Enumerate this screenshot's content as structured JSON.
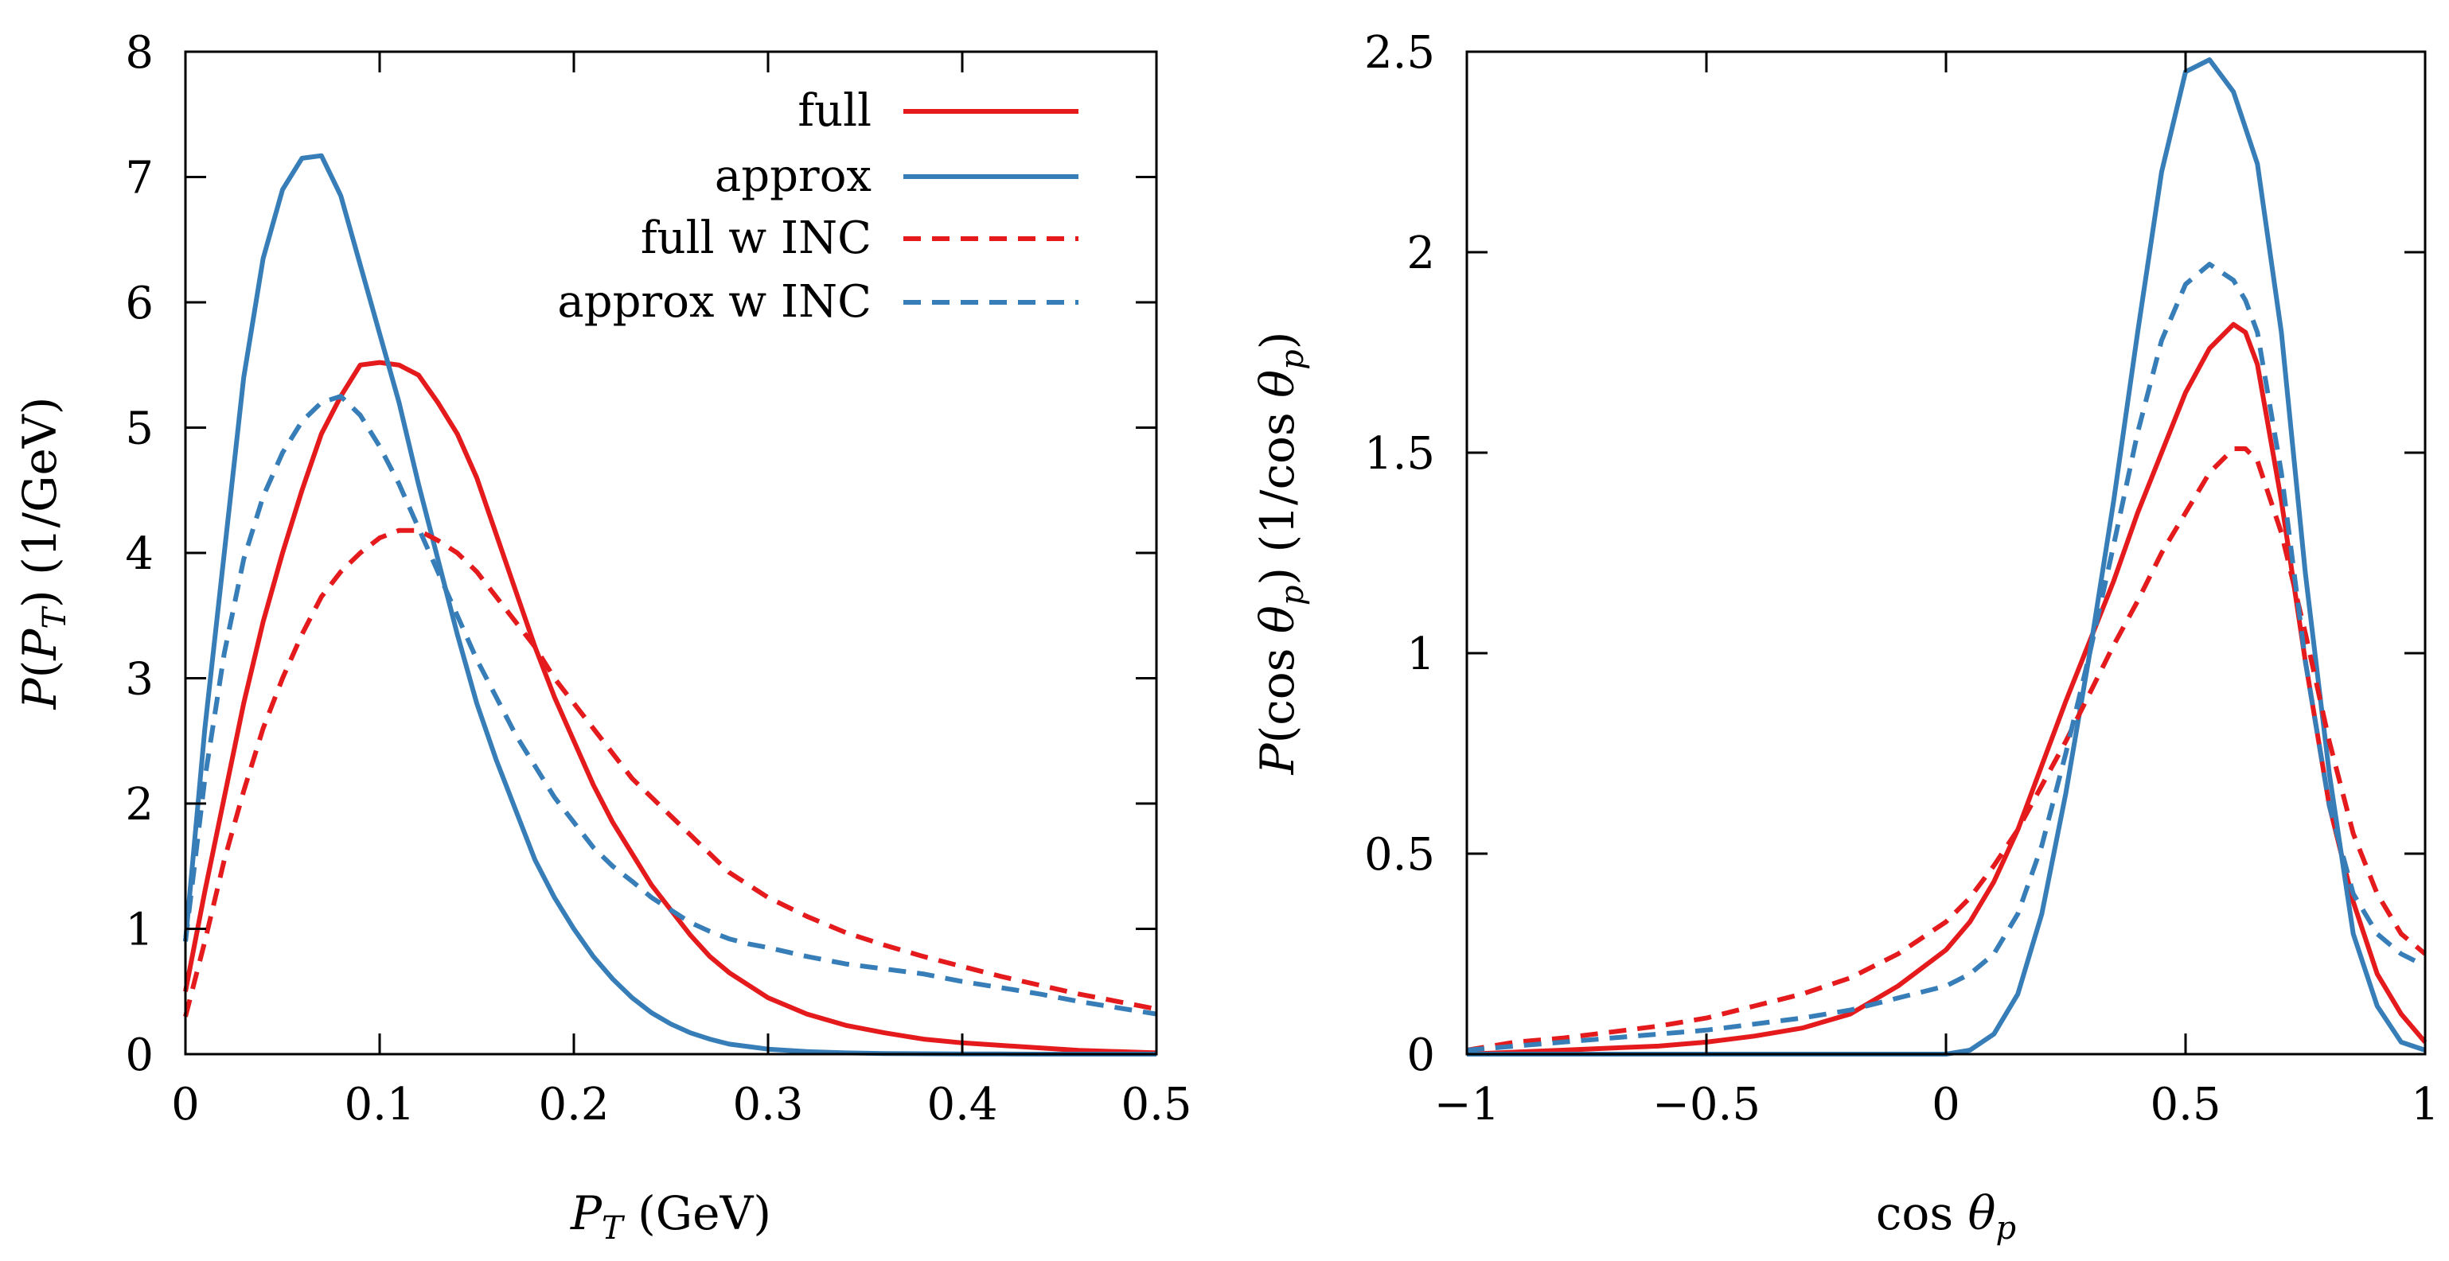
{
  "chart_data": [
    {
      "type": "line",
      "xlabel": "P_T (GeV)",
      "ylabel": "P(P_T) (1/GeV)",
      "xlim": [
        0,
        0.5
      ],
      "ylim": [
        0,
        8
      ],
      "xticks": [
        0,
        0.1,
        0.2,
        0.3,
        0.4,
        0.5
      ],
      "yticks": [
        0,
        1,
        2,
        3,
        4,
        5,
        6,
        7,
        8
      ],
      "xtick_labels": [
        "0",
        "0.1",
        "0.2",
        "0.3",
        "0.4",
        "0.5"
      ],
      "ytick_labels": [
        "0",
        "1",
        "2",
        "3",
        "4",
        "5",
        "6",
        "7",
        "8"
      ],
      "xlabel_parts": [
        "P",
        "T",
        " (GeV)"
      ],
      "ylabel_parts": [
        "P",
        "(",
        "P",
        "T",
        ") (1/GeV)"
      ],
      "legend_position": "top-right",
      "grid": false,
      "series": [
        {
          "name": "full",
          "color": "#e41a1c",
          "dash": "solid",
          "x": [
            0,
            0.01,
            0.02,
            0.03,
            0.04,
            0.05,
            0.06,
            0.07,
            0.08,
            0.09,
            0.1,
            0.11,
            0.12,
            0.13,
            0.14,
            0.15,
            0.16,
            0.17,
            0.18,
            0.19,
            0.2,
            0.21,
            0.22,
            0.23,
            0.24,
            0.25,
            0.26,
            0.27,
            0.28,
            0.29,
            0.3,
            0.32,
            0.34,
            0.36,
            0.38,
            0.4,
            0.42,
            0.44,
            0.46,
            0.48,
            0.5
          ],
          "y": [
            0.5,
            1.3,
            2.05,
            2.8,
            3.45,
            4.0,
            4.5,
            4.95,
            5.25,
            5.5,
            5.52,
            5.5,
            5.42,
            5.2,
            4.95,
            4.6,
            4.15,
            3.7,
            3.25,
            2.85,
            2.5,
            2.15,
            1.85,
            1.6,
            1.35,
            1.15,
            0.95,
            0.78,
            0.65,
            0.55,
            0.45,
            0.32,
            0.23,
            0.17,
            0.12,
            0.09,
            0.07,
            0.05,
            0.03,
            0.02,
            0.01
          ]
        },
        {
          "name": "approx",
          "color": "#377eb8",
          "dash": "solid",
          "x": [
            0,
            0.01,
            0.02,
            0.03,
            0.04,
            0.05,
            0.06,
            0.07,
            0.08,
            0.09,
            0.1,
            0.11,
            0.12,
            0.13,
            0.14,
            0.15,
            0.16,
            0.17,
            0.18,
            0.19,
            0.2,
            0.21,
            0.22,
            0.23,
            0.24,
            0.25,
            0.26,
            0.27,
            0.28,
            0.29,
            0.3,
            0.32,
            0.34,
            0.36,
            0.38,
            0.4,
            0.42,
            0.44,
            0.46,
            0.48,
            0.5
          ],
          "y": [
            0.9,
            2.6,
            4.0,
            5.4,
            6.35,
            6.9,
            7.15,
            7.17,
            6.85,
            6.3,
            5.75,
            5.2,
            4.55,
            3.95,
            3.35,
            2.8,
            2.35,
            1.95,
            1.55,
            1.25,
            1.0,
            0.78,
            0.6,
            0.45,
            0.33,
            0.24,
            0.17,
            0.12,
            0.08,
            0.06,
            0.04,
            0.02,
            0.01,
            0.005,
            0.003,
            0.002,
            0.001,
            0,
            0,
            0,
            0
          ]
        },
        {
          "name": "full w INC",
          "color": "#e41a1c",
          "dash": "dashed",
          "x": [
            0,
            0.01,
            0.02,
            0.03,
            0.04,
            0.05,
            0.06,
            0.07,
            0.08,
            0.09,
            0.1,
            0.11,
            0.12,
            0.13,
            0.14,
            0.15,
            0.16,
            0.17,
            0.18,
            0.19,
            0.2,
            0.21,
            0.22,
            0.23,
            0.24,
            0.25,
            0.26,
            0.27,
            0.28,
            0.29,
            0.3,
            0.32,
            0.34,
            0.36,
            0.38,
            0.4,
            0.42,
            0.44,
            0.46,
            0.48,
            0.5
          ],
          "y": [
            0.3,
            0.9,
            1.55,
            2.1,
            2.6,
            3.0,
            3.35,
            3.65,
            3.85,
            4.0,
            4.12,
            4.18,
            4.18,
            4.1,
            4.0,
            3.85,
            3.65,
            3.45,
            3.25,
            3.0,
            2.8,
            2.6,
            2.4,
            2.2,
            2.05,
            1.9,
            1.75,
            1.6,
            1.45,
            1.35,
            1.25,
            1.1,
            0.97,
            0.87,
            0.78,
            0.7,
            0.62,
            0.55,
            0.48,
            0.42,
            0.36
          ]
        },
        {
          "name": "approx w INC",
          "color": "#377eb8",
          "dash": "dashed",
          "x": [
            0,
            0.01,
            0.02,
            0.03,
            0.04,
            0.05,
            0.06,
            0.07,
            0.08,
            0.09,
            0.1,
            0.11,
            0.12,
            0.13,
            0.14,
            0.15,
            0.16,
            0.17,
            0.18,
            0.19,
            0.2,
            0.21,
            0.22,
            0.23,
            0.24,
            0.25,
            0.26,
            0.27,
            0.28,
            0.29,
            0.3,
            0.32,
            0.34,
            0.36,
            0.38,
            0.4,
            0.42,
            0.44,
            0.46,
            0.48,
            0.5
          ],
          "y": [
            0.9,
            2.2,
            3.2,
            3.95,
            4.45,
            4.8,
            5.05,
            5.2,
            5.25,
            5.1,
            4.85,
            4.55,
            4.2,
            3.85,
            3.5,
            3.15,
            2.85,
            2.55,
            2.3,
            2.05,
            1.85,
            1.65,
            1.5,
            1.38,
            1.25,
            1.15,
            1.05,
            0.98,
            0.92,
            0.88,
            0.85,
            0.78,
            0.72,
            0.68,
            0.64,
            0.58,
            0.53,
            0.48,
            0.42,
            0.37,
            0.32
          ]
        }
      ]
    },
    {
      "type": "line",
      "xlabel": "cos θ_p",
      "ylabel": "P(cos θ_p) (1/cos θ_p)",
      "xlim": [
        -1,
        1
      ],
      "ylim": [
        0,
        2.5
      ],
      "xticks": [
        -1,
        -0.5,
        0,
        0.5,
        1
      ],
      "yticks": [
        0,
        0.5,
        1,
        1.5,
        2,
        2.5
      ],
      "xtick_labels": [
        "−1",
        "−0.5",
        "0",
        "0.5",
        "1"
      ],
      "ytick_labels": [
        "0",
        "0.5",
        "1",
        "1.5",
        "2",
        "2.5"
      ],
      "xlabel_parts": [
        "cos",
        "θ",
        "p"
      ],
      "ylabel_parts": [
        "P",
        "(cos",
        "θ",
        "p",
        ") (1/cos",
        "θ",
        "p",
        ")"
      ],
      "legend_position": "none",
      "grid": false,
      "series": [
        {
          "name": "full",
          "color": "#e41a1c",
          "dash": "solid",
          "x": [
            -1,
            -0.9,
            -0.8,
            -0.7,
            -0.6,
            -0.5,
            -0.4,
            -0.3,
            -0.2,
            -0.1,
            0,
            0.05,
            0.1,
            0.15,
            0.2,
            0.25,
            0.3,
            0.35,
            0.4,
            0.45,
            0.5,
            0.55,
            0.6,
            0.625,
            0.65,
            0.7,
            0.75,
            0.8,
            0.85,
            0.9,
            0.95,
            1.0
          ],
          "y": [
            0,
            0.005,
            0.01,
            0.015,
            0.02,
            0.03,
            0.045,
            0.065,
            0.1,
            0.17,
            0.26,
            0.33,
            0.43,
            0.56,
            0.72,
            0.88,
            1.03,
            1.18,
            1.35,
            1.5,
            1.65,
            1.76,
            1.82,
            1.8,
            1.72,
            1.38,
            0.98,
            0.62,
            0.38,
            0.2,
            0.1,
            0.03
          ]
        },
        {
          "name": "approx",
          "color": "#377eb8",
          "dash": "solid",
          "x": [
            -1,
            -0.5,
            0,
            0.05,
            0.1,
            0.15,
            0.2,
            0.25,
            0.3,
            0.35,
            0.4,
            0.45,
            0.5,
            0.55,
            0.6,
            0.65,
            0.7,
            0.75,
            0.8,
            0.85,
            0.9,
            0.95,
            1.0
          ],
          "y": [
            0,
            0,
            0,
            0.01,
            0.05,
            0.15,
            0.35,
            0.65,
            1.0,
            1.38,
            1.8,
            2.2,
            2.45,
            2.48,
            2.4,
            2.22,
            1.8,
            1.2,
            0.7,
            0.3,
            0.12,
            0.03,
            0.01
          ]
        },
        {
          "name": "full w INC",
          "color": "#e41a1c",
          "dash": "dashed",
          "x": [
            -1,
            -0.9,
            -0.8,
            -0.7,
            -0.6,
            -0.5,
            -0.4,
            -0.3,
            -0.2,
            -0.1,
            0,
            0.05,
            0.1,
            0.15,
            0.2,
            0.25,
            0.3,
            0.35,
            0.4,
            0.45,
            0.5,
            0.55,
            0.6,
            0.625,
            0.65,
            0.7,
            0.75,
            0.8,
            0.85,
            0.9,
            0.95,
            1.0
          ],
          "y": [
            0.01,
            0.03,
            0.04,
            0.055,
            0.07,
            0.09,
            0.12,
            0.15,
            0.19,
            0.25,
            0.33,
            0.39,
            0.47,
            0.56,
            0.67,
            0.78,
            0.9,
            1.02,
            1.13,
            1.25,
            1.35,
            1.45,
            1.51,
            1.51,
            1.48,
            1.3,
            1.05,
            0.78,
            0.55,
            0.4,
            0.3,
            0.25
          ]
        },
        {
          "name": "approx w INC",
          "color": "#377eb8",
          "dash": "dashed",
          "x": [
            -1,
            -0.9,
            -0.8,
            -0.7,
            -0.6,
            -0.5,
            -0.4,
            -0.3,
            -0.2,
            -0.1,
            0,
            0.05,
            0.1,
            0.15,
            0.2,
            0.25,
            0.3,
            0.35,
            0.4,
            0.45,
            0.5,
            0.55,
            0.6,
            0.625,
            0.65,
            0.7,
            0.75,
            0.8,
            0.85,
            0.9,
            0.95,
            1.0
          ],
          "y": [
            0.01,
            0.02,
            0.03,
            0.04,
            0.05,
            0.06,
            0.075,
            0.09,
            0.11,
            0.14,
            0.17,
            0.2,
            0.25,
            0.35,
            0.52,
            0.75,
            1.0,
            1.27,
            1.55,
            1.78,
            1.92,
            1.97,
            1.93,
            1.88,
            1.8,
            1.45,
            0.98,
            0.62,
            0.4,
            0.3,
            0.25,
            0.22
          ]
        }
      ]
    }
  ]
}
